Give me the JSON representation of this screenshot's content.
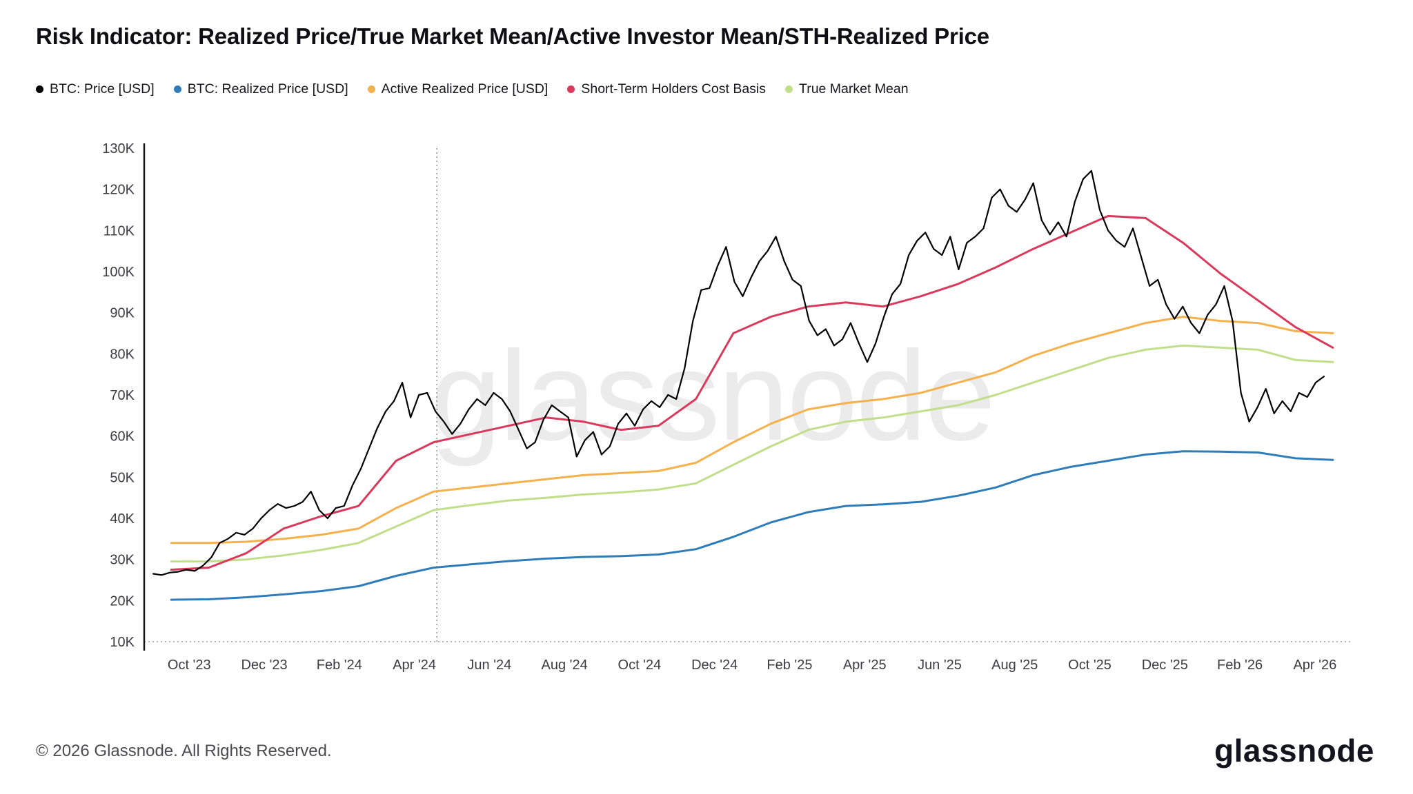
{
  "chart_data": {
    "type": "line",
    "title": "Risk Indicator: Realized Price/True Market Mean/Active Investor Mean/STH-Realized Price",
    "x_domain": [
      2023.65,
      2026.31
    ],
    "y_domain_k": [
      10,
      130
    ],
    "y_unit": "USD",
    "legend_position": "top-left",
    "grid": "dotted baseline at 10K only",
    "halving_marker_x": 2024.3,
    "y_ticks": [
      {
        "v": 10,
        "label": "10K"
      },
      {
        "v": 20,
        "label": "20K"
      },
      {
        "v": 30,
        "label": "30K"
      },
      {
        "v": 40,
        "label": "40K"
      },
      {
        "v": 50,
        "label": "50K"
      },
      {
        "v": 60,
        "label": "60K"
      },
      {
        "v": 70,
        "label": "70K"
      },
      {
        "v": 80,
        "label": "80K"
      },
      {
        "v": 90,
        "label": "90K"
      },
      {
        "v": 100,
        "label": "100K"
      },
      {
        "v": 110,
        "label": "110K"
      },
      {
        "v": 120,
        "label": "120K"
      },
      {
        "v": 130,
        "label": "130K"
      }
    ],
    "x_ticks": [
      {
        "x": 2023.75,
        "label": "Oct '23"
      },
      {
        "x": 2023.9167,
        "label": "Dec '23"
      },
      {
        "x": 2024.0833,
        "label": "Feb '24"
      },
      {
        "x": 2024.25,
        "label": "Apr '24"
      },
      {
        "x": 2024.4167,
        "label": "Jun '24"
      },
      {
        "x": 2024.5833,
        "label": "Aug '24"
      },
      {
        "x": 2024.75,
        "label": "Oct '24"
      },
      {
        "x": 2024.9167,
        "label": "Dec '24"
      },
      {
        "x": 2025.0833,
        "label": "Feb '25"
      },
      {
        "x": 2025.25,
        "label": "Apr '25"
      },
      {
        "x": 2025.4167,
        "label": "Jun '25"
      },
      {
        "x": 2025.5833,
        "label": "Aug '25"
      },
      {
        "x": 2025.75,
        "label": "Oct '25"
      },
      {
        "x": 2025.9167,
        "label": "Dec '25"
      },
      {
        "x": 2026.0833,
        "label": "Feb '26"
      },
      {
        "x": 2026.25,
        "label": "Apr '26"
      }
    ],
    "series": [
      {
        "name": "BTC: Realized Price [USD]",
        "color": "#2e7cb8",
        "width": 3,
        "legend_index": 1,
        "x_start": 2023.71,
        "x_end": 2026.29,
        "values_k": [
          20.2,
          20.3,
          20.8,
          21.5,
          22.3,
          23.5,
          26.0,
          28.0,
          28.8,
          29.6,
          30.2,
          30.6,
          30.8,
          31.2,
          32.5,
          35.5,
          39.0,
          41.5,
          43.0,
          43.4,
          44.0,
          45.5,
          47.5,
          50.5,
          52.5,
          54.0,
          55.5,
          56.3,
          56.2,
          56.0,
          54.6,
          54.2
        ]
      },
      {
        "name": "True Market Mean",
        "color": "#c1de8b",
        "width": 3,
        "legend_index": 4,
        "x_start": 2023.71,
        "x_end": 2026.29,
        "values_k": [
          29.5,
          29.5,
          30.0,
          31.0,
          32.3,
          34.0,
          38.0,
          42.0,
          43.2,
          44.3,
          45.0,
          45.8,
          46.3,
          47.0,
          48.5,
          53.0,
          57.5,
          61.5,
          63.5,
          64.5,
          66.0,
          67.5,
          70.0,
          73.0,
          76.0,
          79.0,
          81.0,
          82.0,
          81.5,
          81.0,
          78.5,
          78.0
        ]
      },
      {
        "name": "Active Realized Price [USD]",
        "color": "#f5b14d",
        "width": 3,
        "legend_index": 2,
        "x_start": 2023.71,
        "x_end": 2026.29,
        "values_k": [
          34.0,
          34.0,
          34.3,
          35.0,
          36.0,
          37.5,
          42.5,
          46.5,
          47.5,
          48.5,
          49.5,
          50.5,
          51.0,
          51.5,
          53.5,
          58.5,
          63.0,
          66.5,
          68.0,
          69.0,
          70.5,
          73.0,
          75.5,
          79.5,
          82.5,
          85.0,
          87.5,
          89.0,
          88.0,
          87.5,
          85.5,
          85.0
        ]
      },
      {
        "name": "Short-Term Holders Cost Basis",
        "color": "#d93a5c",
        "width": 3,
        "legend_index": 3,
        "x_start": 2023.71,
        "x_end": 2026.29,
        "values_k": [
          27.5,
          28.0,
          31.5,
          37.5,
          40.5,
          43.0,
          54.0,
          58.5,
          60.5,
          62.5,
          64.5,
          63.5,
          61.5,
          62.5,
          69.0,
          85.0,
          89.0,
          91.5,
          92.5,
          91.5,
          94.0,
          97.0,
          101.0,
          105.5,
          109.5,
          113.5,
          113.0,
          107.0,
          99.5,
          93.0,
          86.5,
          81.5
        ]
      },
      {
        "name": "BTC: Price [USD]",
        "color": "#000000",
        "width": 2.2,
        "legend_index": 0,
        "x_start": 2023.67,
        "x_end": 2026.27,
        "values_k": [
          26.5,
          26.2,
          26.8,
          27.0,
          27.5,
          27.2,
          28.5,
          30.5,
          34.0,
          35.0,
          36.5,
          36.0,
          37.5,
          40.0,
          42.0,
          43.5,
          42.5,
          43.0,
          44.0,
          46.5,
          42.0,
          40.0,
          42.5,
          43.0,
          48.0,
          52.0,
          57.0,
          62.0,
          66.0,
          68.5,
          73.0,
          64.5,
          70.0,
          70.5,
          66.0,
          63.5,
          60.5,
          63.0,
          66.5,
          69.0,
          67.5,
          70.5,
          69.0,
          66.0,
          61.5,
          57.0,
          58.5,
          64.0,
          67.5,
          66.0,
          64.5,
          55.0,
          59.0,
          61.0,
          55.5,
          57.5,
          63.0,
          65.5,
          62.5,
          66.5,
          68.5,
          67.0,
          70.0,
          69.0,
          76.5,
          88.0,
          95.5,
          96.0,
          101.5,
          106.0,
          97.5,
          94.0,
          98.5,
          102.5,
          105.0,
          108.5,
          102.5,
          98.0,
          96.5,
          88.0,
          84.5,
          86.0,
          82.0,
          83.5,
          87.5,
          82.5,
          78.0,
          82.5,
          89.0,
          94.5,
          97.0,
          104.0,
          107.5,
          109.5,
          105.5,
          104.0,
          108.5,
          100.5,
          107.0,
          108.5,
          110.5,
          118.0,
          120.0,
          116.0,
          114.5,
          117.5,
          121.5,
          112.5,
          109.0,
          112.0,
          108.5,
          117.0,
          122.5,
          124.5,
          115.0,
          110.0,
          107.5,
          106.0,
          110.5,
          103.5,
          96.5,
          98.0,
          92.0,
          88.5,
          91.5,
          87.5,
          85.0,
          89.5,
          92.0,
          96.5,
          88.0,
          70.5,
          63.5,
          67.0,
          71.5,
          65.5,
          68.5,
          66.0,
          70.5,
          69.5,
          73.0,
          74.5
        ]
      }
    ]
  },
  "watermark": {
    "text": "glassnode",
    "color": "#ebebeb"
  },
  "footer": {
    "copyright": "© 2026 Glassnode. All Rights Reserved.",
    "logo_text": "glassnode"
  }
}
